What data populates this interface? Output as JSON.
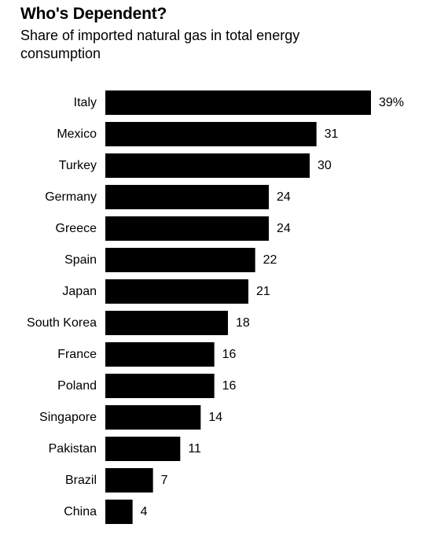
{
  "header": {
    "title": "Who's Dependent?",
    "subtitle": "Share of imported natural gas in total energy consumption"
  },
  "chart_data": {
    "type": "bar",
    "orientation": "horizontal",
    "title": "Who's Dependent?",
    "subtitle": "Share of imported natural gas in total energy consumption",
    "categories": [
      "Italy",
      "Mexico",
      "Turkey",
      "Germany",
      "Greece",
      "Spain",
      "Japan",
      "South Korea",
      "France",
      "Poland",
      "Singapore",
      "Pakistan",
      "Brazil",
      "China"
    ],
    "values": [
      39,
      31,
      30,
      24,
      24,
      22,
      21,
      18,
      16,
      16,
      14,
      11,
      7,
      4
    ],
    "value_labels": [
      "39%",
      "31",
      "30",
      "24",
      "24",
      "22",
      "21",
      "18",
      "16",
      "16",
      "14",
      "11",
      "7",
      "4"
    ],
    "unit": "%",
    "xlim": [
      0,
      39
    ],
    "grid": false,
    "legend": "none",
    "bar_color": "#000000"
  }
}
